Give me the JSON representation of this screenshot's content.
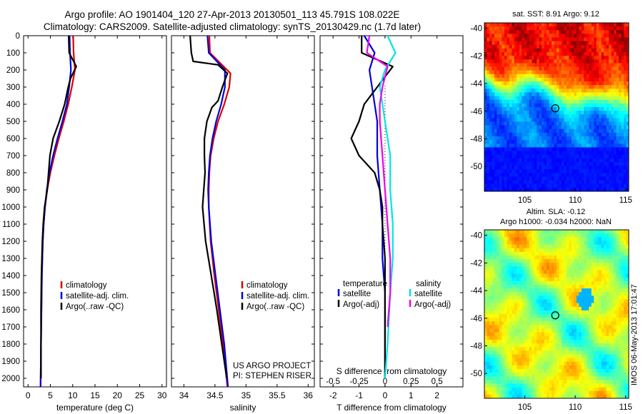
{
  "header": {
    "line1": "Argo profile: AO 1901404_120 27-Apr-2013 20130501_113 45.791S 108.022E",
    "line2": "Climatology: CARS2009. Satellite-adjusted climatology: synTS_20130429.nc (1.7d later)"
  },
  "colors": {
    "climatology": "#dd0000",
    "satellite": "#0000dd",
    "argo": "#000000",
    "sal_satellite": "#00e5e5",
    "sal_argo": "#ee00ee"
  },
  "footer": {
    "project": "US ARGO PROJECT",
    "pi": "PI: STEPHEN RISER",
    "timestamp": "IMOS 06-May-2013 17:01:47"
  },
  "sst_panel": {
    "title": "sat. SST: 8.91  Argo: 9.12",
    "lat_ticks": [
      "-40",
      "-42",
      "-44",
      "-46",
      "-48",
      "-50"
    ],
    "lon_ticks": [
      "105",
      "110",
      "115"
    ],
    "colormap": "jet"
  },
  "sla_panel": {
    "title1": "Altim. SLA: -0.12",
    "title2": "Argo h1000: -0.034 h2000: NaN",
    "lat_ticks": [
      "-40",
      "-42",
      "-44",
      "-46",
      "-48",
      "-50"
    ],
    "lon_ticks": [
      "105",
      "110",
      "115"
    ]
  },
  "chart_data": [
    {
      "type": "line",
      "xlabel": "temperature (deg C)",
      "ylabel": "",
      "xlim": [
        -1,
        31
      ],
      "ylim": [
        2050,
        0
      ],
      "xticks": [
        "0",
        "5",
        "10",
        "15",
        "20",
        "25",
        "30"
      ],
      "yticks": [
        "0",
        "100",
        "200",
        "300",
        "400",
        "500",
        "600",
        "700",
        "800",
        "900",
        "1000",
        "1100",
        "1200",
        "1300",
        "1400",
        "1500",
        "1600",
        "1700",
        "1800",
        "1900",
        "2000"
      ],
      "legend": [
        "climatology",
        "satellite-adj. clim.",
        "Argo(..raw -QC)"
      ],
      "legend_position": "lower-center",
      "series": [
        {
          "name": "climatology",
          "color": "red",
          "points": [
            [
              10.1,
              0
            ],
            [
              10.2,
              100
            ],
            [
              10.5,
              200
            ],
            [
              9.8,
              300
            ],
            [
              9.0,
              400
            ],
            [
              8.0,
              500
            ],
            [
              6.9,
              600
            ],
            [
              5.9,
              700
            ],
            [
              5.0,
              800
            ],
            [
              4.3,
              900
            ],
            [
              3.8,
              1000
            ],
            [
              3.5,
              1100
            ],
            [
              3.3,
              1200
            ],
            [
              3.1,
              1400
            ],
            [
              3.0,
              1600
            ],
            [
              2.9,
              1800
            ],
            [
              2.8,
              2050
            ]
          ]
        },
        {
          "name": "satellite-adj. clim.",
          "color": "blue",
          "points": [
            [
              9.3,
              0
            ],
            [
              9.4,
              100
            ],
            [
              9.6,
              200
            ],
            [
              9.2,
              300
            ],
            [
              8.7,
              400
            ],
            [
              7.7,
              500
            ],
            [
              6.6,
              600
            ],
            [
              5.6,
              700
            ],
            [
              4.8,
              800
            ],
            [
              4.2,
              900
            ],
            [
              3.8,
              1000
            ],
            [
              3.5,
              1100
            ],
            [
              3.3,
              1200
            ],
            [
              3.1,
              1400
            ],
            [
              3.0,
              1600
            ],
            [
              2.9,
              1800
            ],
            [
              2.8,
              2050
            ]
          ]
        },
        {
          "name": "Argo(..raw -QC)",
          "color": "black",
          "points": [
            [
              9.1,
              0
            ],
            [
              9.2,
              100
            ],
            [
              10.8,
              180
            ],
            [
              9.5,
              250
            ],
            [
              9.0,
              300
            ],
            [
              8.2,
              400
            ],
            [
              7.0,
              500
            ],
            [
              5.6,
              600
            ],
            [
              4.9,
              700
            ],
            [
              4.6,
              800
            ],
            [
              4.3,
              900
            ],
            [
              3.7,
              1000
            ],
            [
              3.4,
              1100
            ],
            [
              3.2,
              1200
            ],
            [
              3.0,
              1400
            ],
            [
              2.9,
              1600
            ],
            [
              2.9,
              1800
            ],
            [
              2.9,
              2000
            ]
          ]
        }
      ]
    },
    {
      "type": "line",
      "xlabel": "salinity",
      "ylabel": "",
      "xlim": [
        33.8,
        36.1
      ],
      "ylim": [
        2050,
        0
      ],
      "xticks": [
        "34",
        "34.5",
        "35",
        "35.5",
        "36"
      ],
      "legend": [
        "climatology",
        "satellite-adj. clim.",
        "Argo(..raw -QC)"
      ],
      "legend_position": "lower-right",
      "series": [
        {
          "name": "climatology",
          "color": "red",
          "points": [
            [
              34.41,
              0
            ],
            [
              34.42,
              100
            ],
            [
              34.75,
              220
            ],
            [
              34.73,
              300
            ],
            [
              34.65,
              400
            ],
            [
              34.55,
              500
            ],
            [
              34.48,
              600
            ],
            [
              34.43,
              700
            ],
            [
              34.41,
              800
            ],
            [
              34.4,
              900
            ],
            [
              34.4,
              1000
            ],
            [
              34.43,
              1200
            ],
            [
              34.49,
              1400
            ],
            [
              34.56,
              1600
            ],
            [
              34.63,
              1800
            ],
            [
              34.7,
              2050
            ]
          ]
        },
        {
          "name": "satellite-adj. clim.",
          "color": "blue",
          "points": [
            [
              34.38,
              0
            ],
            [
              34.4,
              100
            ],
            [
              34.66,
              200
            ],
            [
              34.66,
              300
            ],
            [
              34.6,
              400
            ],
            [
              34.52,
              500
            ],
            [
              34.46,
              600
            ],
            [
              34.42,
              700
            ],
            [
              34.4,
              800
            ],
            [
              34.39,
              900
            ],
            [
              34.4,
              1000
            ],
            [
              34.44,
              1200
            ],
            [
              34.51,
              1400
            ],
            [
              34.58,
              1600
            ],
            [
              34.65,
              1800
            ],
            [
              34.71,
              2050
            ]
          ]
        },
        {
          "name": "Argo(..raw -QC)",
          "color": "black",
          "points": [
            [
              34.1,
              0
            ],
            [
              34.12,
              100
            ],
            [
              34.15,
              150
            ],
            [
              34.55,
              170
            ],
            [
              34.7,
              220
            ],
            [
              34.62,
              300
            ],
            [
              34.55,
              380
            ],
            [
              34.45,
              420
            ],
            [
              34.37,
              500
            ],
            [
              34.33,
              600
            ],
            [
              34.33,
              700
            ],
            [
              34.34,
              800
            ],
            [
              34.32,
              900
            ],
            [
              34.3,
              1000
            ],
            [
              34.35,
              1200
            ],
            [
              34.44,
              1400
            ],
            [
              34.53,
              1600
            ],
            [
              34.61,
              1800
            ],
            [
              34.69,
              2000
            ]
          ]
        }
      ]
    },
    {
      "type": "line",
      "xlabel": "T difference from climatology",
      "secondary_xlabel": "S difference from climatology",
      "ylabel": "",
      "xlim": [
        -2.5,
        3
      ],
      "ylim": [
        2050,
        0
      ],
      "xticks": [
        "-2",
        "-1",
        "0",
        "1",
        "2"
      ],
      "secondary_xticks": [
        "-0.5",
        "-0.25",
        "0",
        "0.25",
        "0.5"
      ],
      "legend": [
        "temperature",
        "satellite",
        "Argo(-adj)",
        "salinity",
        "satellite",
        "Argo(-adj)"
      ],
      "legend_position": "lower-center",
      "series": [
        {
          "name": "temperature satellite",
          "color": "blue",
          "points": [
            [
              -0.8,
              0
            ],
            [
              -0.4,
              100
            ],
            [
              -0.6,
              200
            ],
            [
              -0.5,
              300
            ],
            [
              -0.4,
              400
            ],
            [
              -0.3,
              500
            ],
            [
              -0.3,
              700
            ],
            [
              -0.2,
              900
            ],
            [
              -0.1,
              1100
            ],
            [
              -0.1,
              1300
            ],
            [
              0.0,
              1500
            ],
            [
              0.0,
              2000
            ]
          ]
        },
        {
          "name": "temperature Argo(-adj)",
          "color": "black",
          "points": [
            [
              -0.9,
              0
            ],
            [
              -0.9,
              100
            ],
            [
              0.3,
              180
            ],
            [
              -0.3,
              300
            ],
            [
              -0.8,
              400
            ],
            [
              -1.0,
              500
            ],
            [
              -1.3,
              600
            ],
            [
              -1.0,
              700
            ],
            [
              -0.4,
              800
            ],
            [
              -0.2,
              900
            ],
            [
              -0.1,
              1000
            ],
            [
              -0.1,
              1100
            ],
            [
              0.0,
              1300
            ],
            [
              0.0,
              2000
            ]
          ]
        },
        {
          "name": "salinity satellite",
          "color": "cyan",
          "points": [
            [
              0.1,
              0
            ],
            [
              0.4,
              100
            ],
            [
              0.0,
              200
            ],
            [
              -0.2,
              300
            ],
            [
              -0.1,
              400
            ],
            [
              0.0,
              500
            ],
            [
              0.2,
              700
            ],
            [
              0.2,
              900
            ],
            [
              0.3,
              1100
            ],
            [
              0.3,
              1300
            ],
            [
              0.2,
              1500
            ],
            [
              0.1,
              1800
            ],
            [
              0.0,
              2000
            ]
          ]
        },
        {
          "name": "salinity Argo(-adj)",
          "color": "magenta",
          "points": [
            [
              -0.6,
              0
            ],
            [
              -0.7,
              100
            ],
            [
              0.1,
              180
            ],
            [
              -0.1,
              300
            ],
            [
              -0.2,
              400
            ],
            [
              -0.2,
              500
            ],
            [
              -0.1,
              700
            ],
            [
              0.0,
              900
            ],
            [
              0.1,
              1100
            ],
            [
              0.2,
              1300
            ],
            [
              0.2,
              1500
            ],
            [
              0.1,
              1700
            ]
          ]
        }
      ]
    }
  ]
}
